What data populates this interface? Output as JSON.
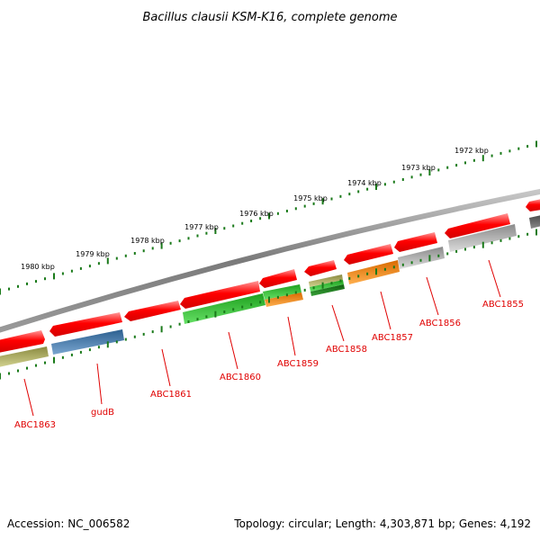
{
  "title": "Bacillus clausii KSM-K16, complete genome",
  "footer": {
    "accession": "Accession: NC_006582",
    "topology": "Topology: circular; Length: 4,303,871 bp; Genes: 4,192"
  },
  "ruler": [
    "1980 kbp",
    "1979 kbp",
    "1978 kbp",
    "1977 kbp",
    "1976 kbp",
    "1975 kbp",
    "1974 kbp",
    "1973 kbp",
    "1972 kbp"
  ],
  "gene_labels": [
    "ABC1863",
    "gudB",
    "ABC1861",
    "ABC1860",
    "ABC1859",
    "ABC1858",
    "ABC1857",
    "ABC1856",
    "ABC1855"
  ],
  "colors": {
    "cds": "#ff0000",
    "backbone": "#7a7a7a",
    "tick": "#1a7a1a",
    "label": "#e00000",
    "olive": "#b4b464",
    "steelblue": "#4a7fb0",
    "green": "#33cc33",
    "orange": "#ff8c00",
    "darkgreen": "#228b22",
    "gray": "#b4b4b4",
    "darkgray": "#6e6e6e"
  }
}
